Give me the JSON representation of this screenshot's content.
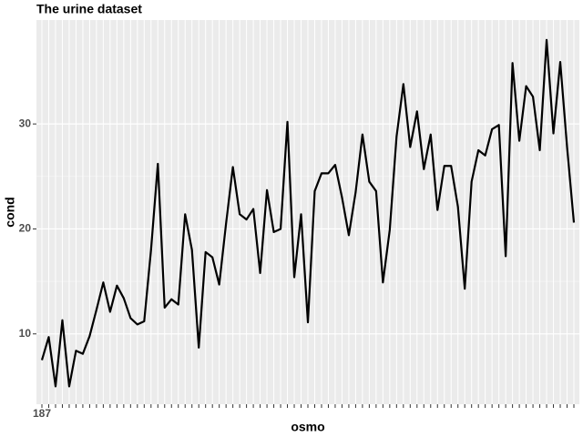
{
  "chart_data": {
    "type": "line",
    "title": "The urine dataset",
    "x_label": "osmo",
    "y_label": "cond",
    "categories": [
      "187",
      null,
      null,
      null,
      null,
      null,
      null,
      null,
      null,
      null,
      null,
      null,
      null,
      null,
      null,
      null,
      null,
      null,
      null,
      null,
      null,
      null,
      null,
      null,
      null,
      null,
      null,
      null,
      null,
      null,
      null,
      null,
      null,
      null,
      null,
      null,
      null,
      null,
      null,
      null,
      null,
      null,
      null,
      null,
      null,
      null,
      null,
      null,
      null,
      null,
      null,
      null,
      null,
      null,
      null,
      null,
      null,
      null,
      null,
      null,
      null,
      null,
      null,
      null,
      null,
      null,
      null,
      null,
      null,
      null,
      null,
      null,
      null,
      null,
      null,
      null,
      null,
      null,
      null
    ],
    "values": [
      7.5,
      9.7,
      5.0,
      11.3,
      5.0,
      8.4,
      8.1,
      9.8,
      12.3,
      14.9,
      12.1,
      14.6,
      13.4,
      11.5,
      10.9,
      11.2,
      18.0,
      26.2,
      12.5,
      13.3,
      12.8,
      21.4,
      18.0,
      8.7,
      17.8,
      17.3,
      14.7,
      20.5,
      25.9,
      21.4,
      20.9,
      21.9,
      15.8,
      23.7,
      19.7,
      20.0,
      30.2,
      15.4,
      21.4,
      11.1,
      23.6,
      25.3,
      25.3,
      26.1,
      23.0,
      19.4,
      23.5,
      29.0,
      24.5,
      23.6,
      14.9,
      19.9,
      28.8,
      33.8,
      27.8,
      31.2,
      25.7,
      29.0,
      21.8,
      26.0,
      26.0,
      22.1,
      14.3,
      24.5,
      27.5,
      27.0,
      29.5,
      29.9,
      17.4,
      35.8,
      28.4,
      33.6,
      32.6,
      27.5,
      38.0,
      29.1,
      35.9,
      27.8,
      20.6
    ],
    "color": "#000000",
    "ylim": [
      3.3,
      39.9
    ],
    "yticks": [
      10,
      20,
      30
    ],
    "grid": true
  }
}
